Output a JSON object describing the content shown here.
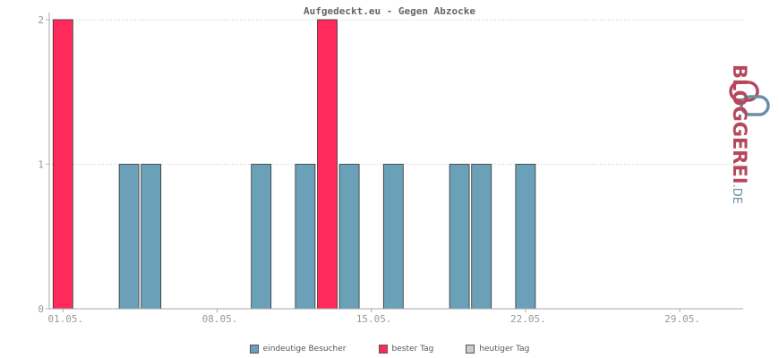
{
  "chart_data": {
    "type": "bar",
    "title": "Aufgedeckt.eu - Gegen Abzocke",
    "ylim": [
      0,
      2
    ],
    "y_ticks": [
      "0",
      "1",
      "2"
    ],
    "x_tick_labels": [
      "01.05.",
      "08.05.",
      "15.05.",
      "22.05.",
      "29.05."
    ],
    "grid": "horizontal dotted",
    "legend_position": "bottom-center",
    "series": [
      {
        "name": "eindeutige Besucher",
        "color": "#6aa1b8",
        "points": [
          {
            "day": 4,
            "value": 1
          },
          {
            "day": 5,
            "value": 1
          },
          {
            "day": 10,
            "value": 1
          },
          {
            "day": 12,
            "value": 1
          },
          {
            "day": 14,
            "value": 1
          },
          {
            "day": 16,
            "value": 1
          },
          {
            "day": 19,
            "value": 1
          },
          {
            "day": 20,
            "value": 1
          },
          {
            "day": 22,
            "value": 1
          }
        ]
      },
      {
        "name": "bester Tag",
        "color": "#ff2a5b",
        "points": [
          {
            "day": 1,
            "value": 2
          },
          {
            "day": 13,
            "value": 2
          }
        ]
      },
      {
        "name": "heutiger Tag",
        "color": "#cccccc",
        "points": []
      }
    ]
  },
  "brand": {
    "name": "BLOGGEREI",
    "tld": ".DE"
  }
}
